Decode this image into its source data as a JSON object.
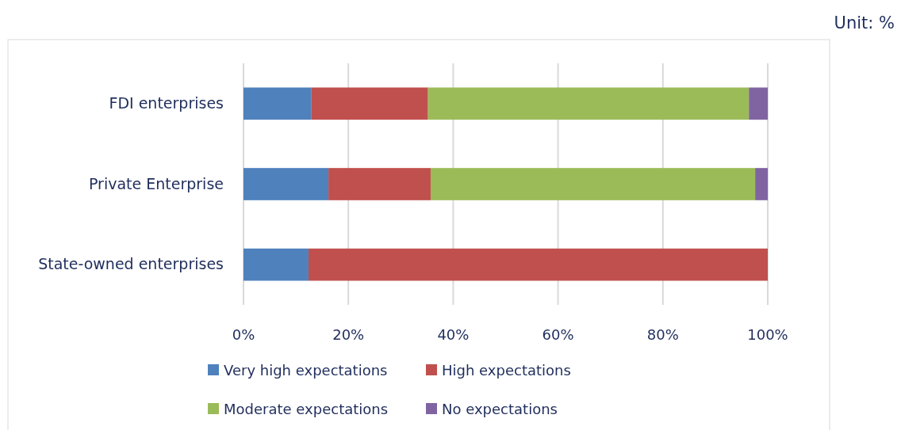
{
  "chart_data": {
    "type": "bar",
    "orientation": "horizontal",
    "stacked": true,
    "categories": [
      "FDI enterprises",
      "Private Enterprise",
      "State-owned enterprises"
    ],
    "series": [
      {
        "name": "Very high expectations",
        "color": "#4f81bd",
        "values": [
          12.9,
          16.2,
          12.4
        ]
      },
      {
        "name": "High expectations",
        "color": "#c0504d",
        "values": [
          22.3,
          19.5,
          87.6
        ]
      },
      {
        "name": "Moderate expectations",
        "color": "#9bbb59",
        "values": [
          61.2,
          61.9,
          null
        ]
      },
      {
        "name": "No expectations",
        "color": "#8064a2",
        "values": [
          3.6,
          2.4,
          null
        ]
      }
    ],
    "xlim": [
      0,
      100
    ],
    "xticks": [
      {
        "value": 0,
        "label": "0%"
      },
      {
        "value": 20,
        "label": "20%"
      },
      {
        "value": 40,
        "label": "40%"
      },
      {
        "value": 60,
        "label": "60%"
      },
      {
        "value": 80,
        "label": "80%"
      },
      {
        "value": 100,
        "label": "100%"
      }
    ],
    "grid": "x",
    "legend": "bottom",
    "annotations": [
      "Unit: %"
    ]
  }
}
